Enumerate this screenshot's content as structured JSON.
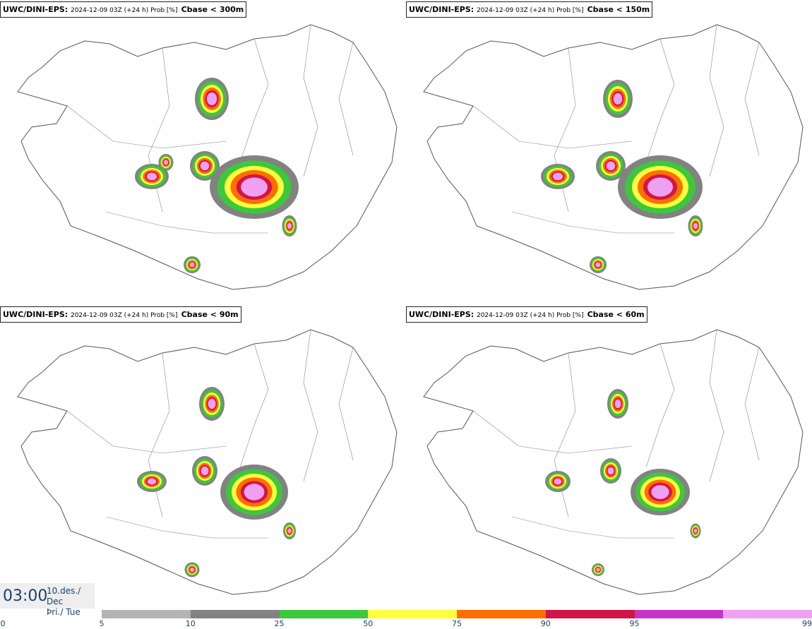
{
  "panels": [
    {
      "model": "UWC/DINI-EPS",
      "info": "2024-12-09 03Z (+24 h) Prob [%]",
      "param": "Cbase < 300m"
    },
    {
      "model": "UWC/DINI-EPS",
      "info": "2024-12-09 03Z (+24 h) Prob [%]",
      "param": "Cbase < 150m"
    },
    {
      "model": "UWC/DINI-EPS",
      "info": "2024-12-09 03Z (+24 h) Prob [%]",
      "param": "Cbase < 90m"
    },
    {
      "model": "UWC/DINI-EPS",
      "info": "2024-12-09 03Z (+24 h) Prob [%]",
      "param": "Cbase < 60m"
    }
  ],
  "time": {
    "clock": "03:00",
    "date_line1": "10.des./ Dec",
    "date_line2": "Þri./ Tue"
  },
  "colorbar": {
    "zero_label": "0",
    "ticks": [
      "5",
      "10",
      "25",
      "50",
      "75",
      "90",
      "95",
      "99"
    ],
    "colors": [
      "#b4b4b4",
      "#828282",
      "#3cc83c",
      "#ffff3c",
      "#ff6e00",
      "#d21446",
      "#c832c8",
      "#f0a0f0"
    ]
  }
}
